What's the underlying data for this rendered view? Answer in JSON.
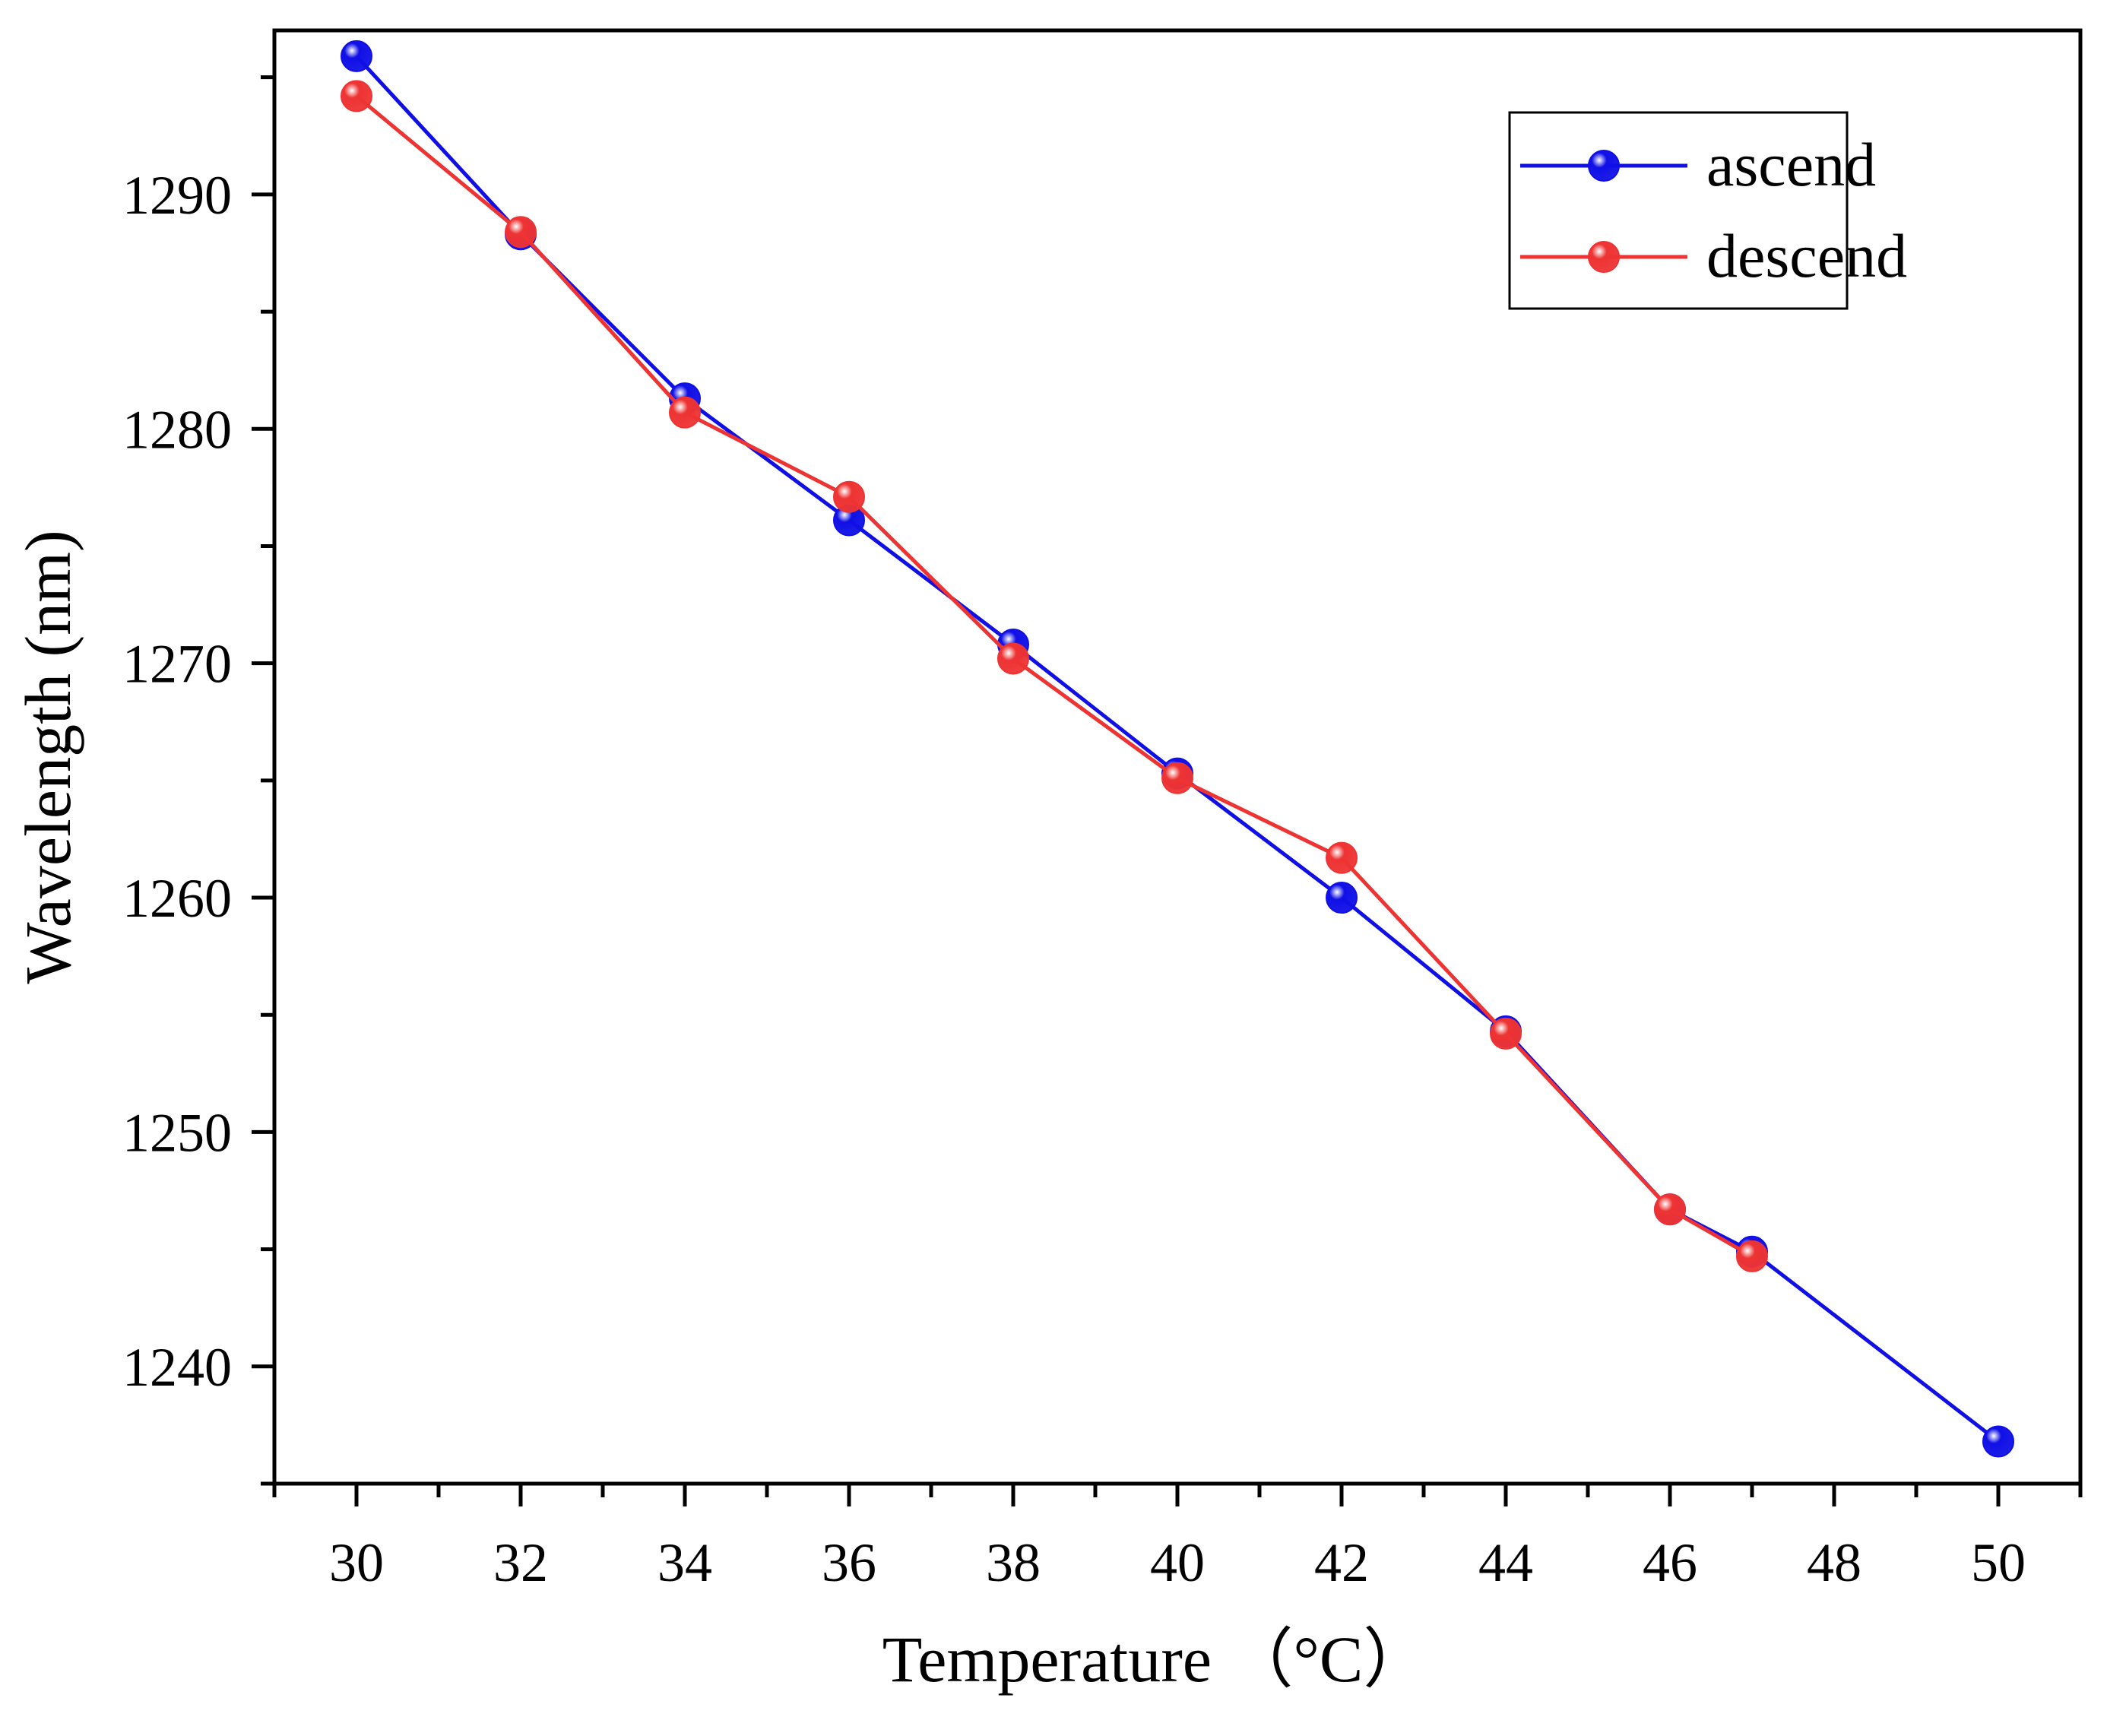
{
  "chart_data": {
    "type": "line",
    "title": "",
    "xlabel": "Temperature （°C）",
    "ylabel": "Wavelength (nm)",
    "xlim": [
      29,
      51
    ],
    "ylim": [
      1235,
      1297
    ],
    "xticks": [
      30,
      32,
      34,
      36,
      38,
      40,
      42,
      44,
      46,
      48,
      50
    ],
    "yticks": [
      1240,
      1250,
      1260,
      1270,
      1280,
      1290
    ],
    "grid": false,
    "legend_position": "top-right",
    "series": [
      {
        "name": "ascend",
        "color": "#1010e6",
        "x": [
          30,
          32,
          34,
          36,
          38,
          40,
          42,
          44,
          46,
          47,
          50
        ],
        "y": [
          1295.9,
          1288.3,
          1281.3,
          1276.1,
          1270.8,
          1265.3,
          1260.0,
          1254.3,
          1246.7,
          1244.9,
          1236.8
        ]
      },
      {
        "name": "descend",
        "color": "#ee3333",
        "x": [
          30,
          32,
          34,
          36,
          38,
          40,
          42,
          44,
          46,
          47
        ],
        "y": [
          1294.2,
          1288.4,
          1280.7,
          1277.1,
          1270.2,
          1265.1,
          1261.7,
          1254.2,
          1246.7,
          1244.7
        ]
      }
    ]
  }
}
